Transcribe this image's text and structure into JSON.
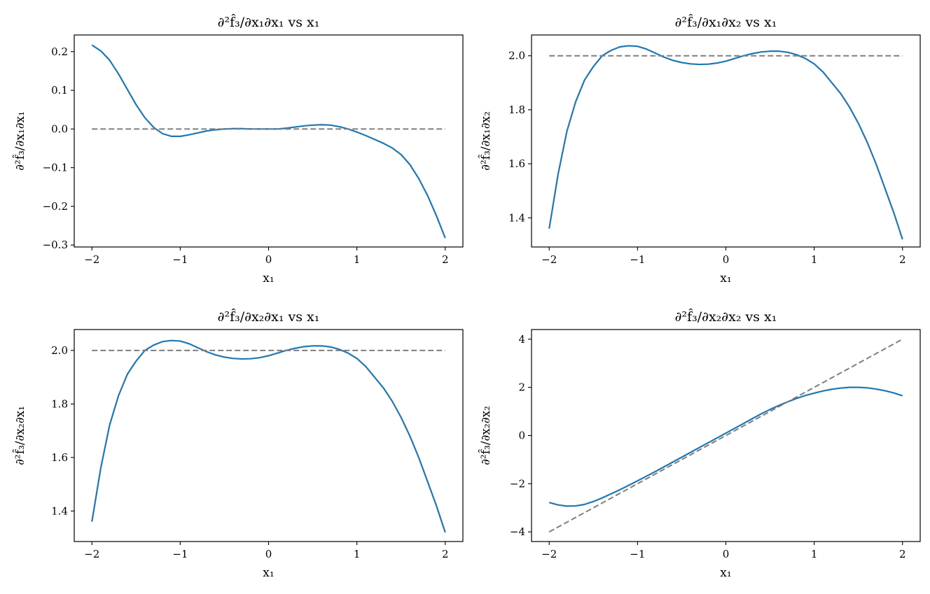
{
  "chart_data": [
    {
      "type": "line",
      "title": "∂²f̂₃/∂x₁∂x₁ vs x₁",
      "xlabel": "x₁",
      "ylabel": "∂²f̂₃/∂x₁∂x₁",
      "xlim": [
        -2.2,
        2.2
      ],
      "ylim": [
        -0.305,
        0.243
      ],
      "xticks": [
        -2,
        -1,
        0,
        1,
        2
      ],
      "xtick_labels": [
        "−2",
        "−1",
        "0",
        "1",
        "2"
      ],
      "yticks": [
        0.2,
        0.1,
        0.0,
        -0.1,
        -0.2,
        -0.3
      ],
      "ytick_labels": [
        "0.2",
        "0.1",
        "0.0",
        "−0.1",
        "−0.2",
        "−0.3"
      ],
      "grid": false,
      "series": [
        {
          "style": "solid",
          "color": "#1f77b4",
          "x": [
            -2.0,
            -1.9,
            -1.8,
            -1.7,
            -1.6,
            -1.5,
            -1.4,
            -1.3,
            -1.2,
            -1.1,
            -1.0,
            -0.9,
            -0.8,
            -0.7,
            -0.6,
            -0.5,
            -0.4,
            -0.3,
            -0.2,
            -0.1,
            0.0,
            0.1,
            0.2,
            0.3,
            0.4,
            0.5,
            0.6,
            0.7,
            0.8,
            0.9,
            1.0,
            1.1,
            1.2,
            1.3,
            1.4,
            1.5,
            1.6,
            1.7,
            1.8,
            1.9,
            2.0
          ],
          "y": [
            0.217,
            0.202,
            0.178,
            0.143,
            0.103,
            0.063,
            0.029,
            0.004,
            -0.012,
            -0.019,
            -0.019,
            -0.015,
            -0.01,
            -0.005,
            -0.002,
            0.0,
            0.001,
            0.001,
            0.0,
            0.0,
            0.0,
            0.0,
            0.002,
            0.005,
            0.008,
            0.01,
            0.011,
            0.01,
            0.006,
            0.0,
            -0.008,
            -0.017,
            -0.027,
            -0.037,
            -0.049,
            -0.066,
            -0.092,
            -0.128,
            -0.172,
            -0.224,
            -0.282
          ]
        },
        {
          "style": "dashed",
          "color": "#7f7f7f",
          "x": [
            -2.0,
            2.0
          ],
          "y": [
            0.0,
            0.0
          ]
        }
      ]
    },
    {
      "type": "line",
      "title": "∂²f̂₃/∂x₁∂x₂ vs x₁",
      "xlabel": "x₁",
      "ylabel": "∂²f̂₃/∂x₁∂x₂",
      "xlim": [
        -2.2,
        2.2
      ],
      "ylim": [
        1.292,
        2.077
      ],
      "xticks": [
        -2,
        -1,
        0,
        1,
        2
      ],
      "xtick_labels": [
        "−2",
        "−1",
        "0",
        "1",
        "2"
      ],
      "yticks": [
        2.0,
        1.8,
        1.6,
        1.4
      ],
      "ytick_labels": [
        "2.0",
        "1.8",
        "1.6",
        "1.4"
      ],
      "grid": false,
      "series": [
        {
          "style": "solid",
          "color": "#1f77b4",
          "x": [
            -2.0,
            -1.9,
            -1.8,
            -1.7,
            -1.6,
            -1.5,
            -1.4,
            -1.3,
            -1.2,
            -1.1,
            -1.0,
            -0.9,
            -0.8,
            -0.7,
            -0.6,
            -0.5,
            -0.4,
            -0.3,
            -0.2,
            -0.1,
            0.0,
            0.1,
            0.2,
            0.3,
            0.4,
            0.5,
            0.6,
            0.7,
            0.8,
            0.9,
            1.0,
            1.1,
            1.2,
            1.3,
            1.4,
            1.5,
            1.6,
            1.7,
            1.8,
            1.9,
            2.0
          ],
          "y": [
            1.36,
            1.56,
            1.72,
            1.83,
            1.91,
            1.96,
            2.0,
            2.02,
            2.033,
            2.037,
            2.035,
            2.025,
            2.01,
            1.995,
            1.983,
            1.975,
            1.97,
            1.968,
            1.969,
            1.973,
            1.98,
            1.99,
            2.0,
            2.008,
            2.014,
            2.017,
            2.017,
            2.013,
            2.004,
            1.99,
            1.97,
            1.94,
            1.9,
            1.86,
            1.81,
            1.75,
            1.68,
            1.6,
            1.51,
            1.42,
            1.32
          ]
        },
        {
          "style": "dashed",
          "color": "#7f7f7f",
          "x": [
            -2.0,
            2.0
          ],
          "y": [
            2.0,
            2.0
          ]
        }
      ]
    },
    {
      "type": "line",
      "title": "∂²f̂₃/∂x₂∂x₁ vs x₁",
      "xlabel": "x₁",
      "ylabel": "∂²f̂₃/∂x₂∂x₁",
      "xlim": [
        -2.2,
        2.2
      ],
      "ylim": [
        1.286,
        2.078
      ],
      "xticks": [
        -2,
        -1,
        0,
        1,
        2
      ],
      "xtick_labels": [
        "−2",
        "−1",
        "0",
        "1",
        "2"
      ],
      "yticks": [
        2.0,
        1.8,
        1.6,
        1.4
      ],
      "ytick_labels": [
        "2.0",
        "1.8",
        "1.6",
        "1.4"
      ],
      "grid": false,
      "series": [
        {
          "style": "solid",
          "color": "#1f77b4",
          "x": [
            -2.0,
            -1.9,
            -1.8,
            -1.7,
            -1.6,
            -1.5,
            -1.4,
            -1.3,
            -1.2,
            -1.1,
            -1.0,
            -0.9,
            -0.8,
            -0.7,
            -0.6,
            -0.5,
            -0.4,
            -0.3,
            -0.2,
            -0.1,
            0.0,
            0.1,
            0.2,
            0.3,
            0.4,
            0.5,
            0.6,
            0.7,
            0.8,
            0.9,
            1.0,
            1.1,
            1.2,
            1.3,
            1.4,
            1.5,
            1.6,
            1.7,
            1.8,
            1.9,
            2.0
          ],
          "y": [
            1.36,
            1.56,
            1.72,
            1.83,
            1.91,
            1.96,
            2.0,
            2.02,
            2.033,
            2.037,
            2.035,
            2.025,
            2.01,
            1.995,
            1.983,
            1.975,
            1.97,
            1.968,
            1.969,
            1.973,
            1.98,
            1.99,
            2.0,
            2.008,
            2.014,
            2.017,
            2.017,
            2.013,
            2.004,
            1.99,
            1.97,
            1.94,
            1.9,
            1.86,
            1.81,
            1.75,
            1.68,
            1.6,
            1.51,
            1.42,
            1.32
          ]
        },
        {
          "style": "dashed",
          "color": "#7f7f7f",
          "x": [
            -2.0,
            2.0
          ],
          "y": [
            2.0,
            2.0
          ]
        }
      ]
    },
    {
      "type": "line",
      "title": "∂²f̂₃/∂x₂∂x₂ vs x₁",
      "xlabel": "x₁",
      "ylabel": "∂²f̂₃/∂x₂∂x₂",
      "xlim": [
        -2.2,
        2.2
      ],
      "ylim": [
        -4.4,
        4.4
      ],
      "xticks": [
        -2,
        -1,
        0,
        1,
        2
      ],
      "xtick_labels": [
        "−2",
        "−1",
        "0",
        "1",
        "2"
      ],
      "yticks": [
        4,
        2,
        0,
        -2,
        -4
      ],
      "ytick_labels": [
        "4",
        "2",
        "0",
        "−2",
        "−4"
      ],
      "grid": false,
      "series": [
        {
          "style": "solid",
          "color": "#1f77b4",
          "x": [
            -2.0,
            -1.9,
            -1.8,
            -1.7,
            -1.6,
            -1.5,
            -1.4,
            -1.3,
            -1.2,
            -1.1,
            -1.0,
            -0.9,
            -0.8,
            -0.7,
            -0.6,
            -0.5,
            -0.4,
            -0.3,
            -0.2,
            -0.1,
            0.0,
            0.1,
            0.2,
            0.3,
            0.4,
            0.5,
            0.6,
            0.7,
            0.8,
            0.9,
            1.0,
            1.1,
            1.2,
            1.3,
            1.4,
            1.5,
            1.6,
            1.7,
            1.8,
            1.9,
            2.0
          ],
          "y": [
            -2.78,
            -2.88,
            -2.93,
            -2.92,
            -2.86,
            -2.74,
            -2.59,
            -2.42,
            -2.25,
            -2.07,
            -1.88,
            -1.69,
            -1.5,
            -1.3,
            -1.1,
            -0.9,
            -0.7,
            -0.5,
            -0.3,
            -0.1,
            0.1,
            0.3,
            0.5,
            0.7,
            0.9,
            1.08,
            1.25,
            1.4,
            1.54,
            1.66,
            1.76,
            1.85,
            1.92,
            1.97,
            2.0,
            2.0,
            1.98,
            1.93,
            1.86,
            1.77,
            1.65
          ]
        },
        {
          "style": "dashed",
          "color": "#7f7f7f",
          "x": [
            -2.0,
            2.0
          ],
          "y": [
            -4.0,
            4.0
          ]
        }
      ]
    }
  ]
}
